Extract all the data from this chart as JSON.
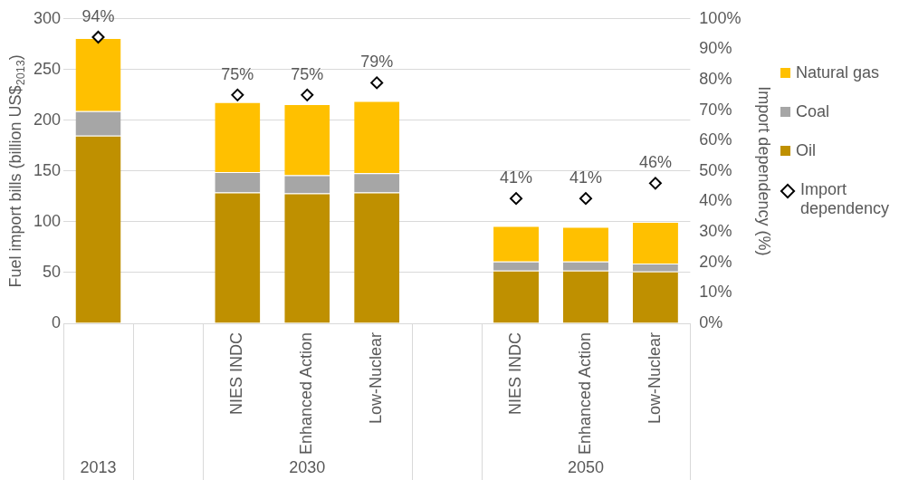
{
  "chart_data": {
    "type": "bar",
    "stacked": true,
    "categories": [
      null,
      null,
      "NIES INDC",
      "Enhanced Action",
      "Low-Nuclear",
      null,
      "NIES INDC",
      "Enhanced Action",
      "Low-Nuclear"
    ],
    "series": [
      {
        "name": "Oil",
        "color": "#bf9000",
        "values": [
          185,
          null,
          129,
          128,
          129,
          null,
          52,
          52,
          51
        ]
      },
      {
        "name": "Coal",
        "color": "#a6a6a6",
        "values": [
          24,
          null,
          20,
          18,
          19,
          null,
          9,
          9,
          8
        ]
      },
      {
        "name": "Natural gas",
        "color": "#ffc000",
        "values": [
          72,
          null,
          69,
          70,
          71,
          null,
          35,
          34,
          41
        ]
      },
      {
        "name": "Import dependency",
        "type": "scatter",
        "axis": "y2",
        "color": "#000000",
        "marker": "diamond",
        "values": [
          94,
          null,
          75,
          75,
          79,
          null,
          41,
          41,
          46
        ],
        "value_labels": [
          "94%",
          null,
          "75%",
          "75%",
          "79%",
          null,
          "41%",
          "41%",
          "46%"
        ]
      }
    ],
    "ylabel": "Fuel import bills (billion US$$_{2013}$)",
    "y2label": "Import dependency (%)",
    "ylim": [
      0,
      300
    ],
    "yticks": [
      0,
      50,
      100,
      150,
      200,
      250,
      300
    ],
    "y2lim": [
      0,
      100
    ],
    "y2ticks": [
      {
        "value": 0,
        "label": "0%"
      },
      {
        "value": 10,
        "label": "10%"
      },
      {
        "value": 20,
        "label": "20%"
      },
      {
        "value": 30,
        "label": "30%"
      },
      {
        "value": 40,
        "label": "40%"
      },
      {
        "value": 50,
        "label": "50%"
      },
      {
        "value": 60,
        "label": "60%"
      },
      {
        "value": 70,
        "label": "70%"
      },
      {
        "value": 80,
        "label": "80%"
      },
      {
        "value": 90,
        "label": "90%"
      },
      {
        "value": 100,
        "label": "100%"
      }
    ],
    "grid": "y",
    "legend": "right",
    "annotations": [
      "2013",
      "2030",
      "2050"
    ]
  }
}
